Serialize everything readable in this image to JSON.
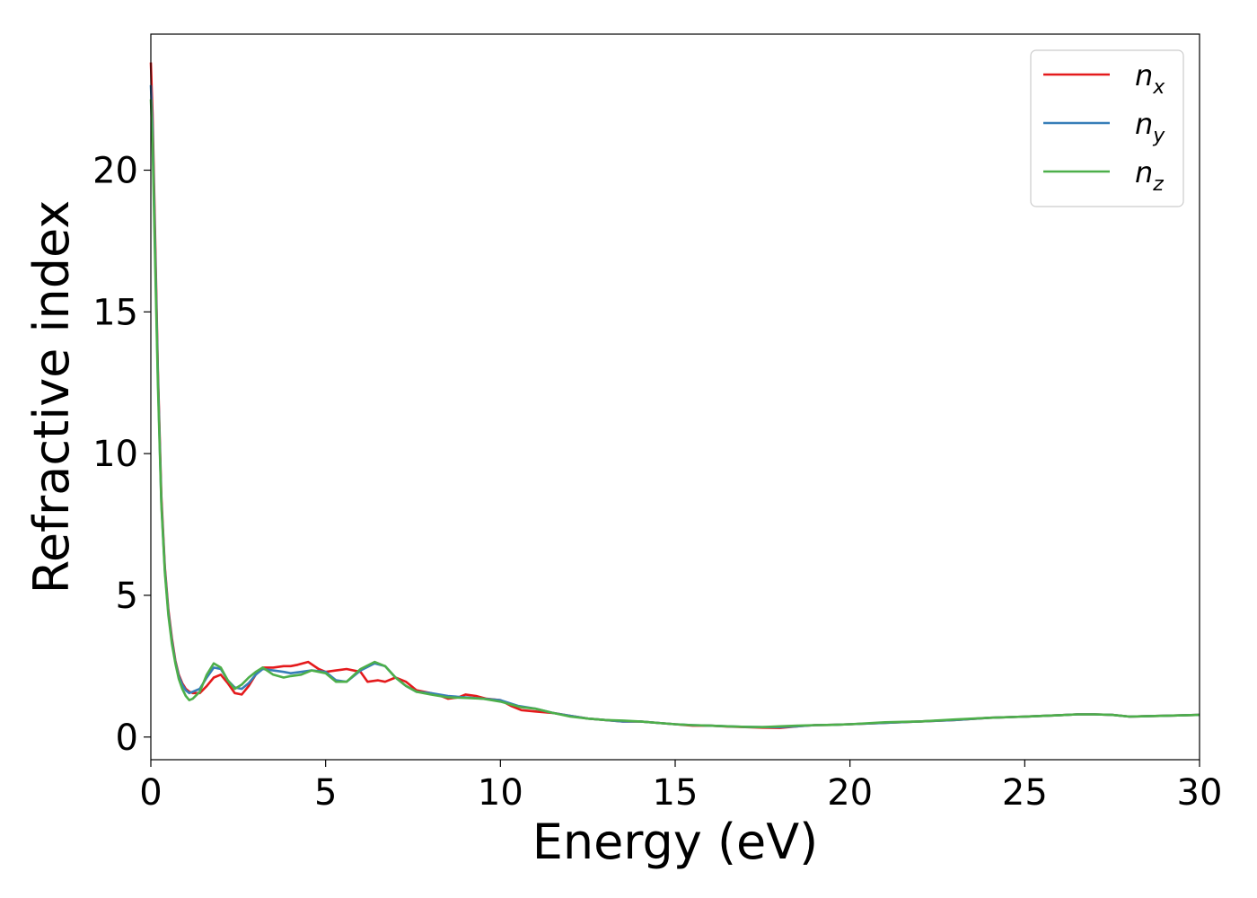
{
  "chart_data": {
    "type": "line",
    "title": "",
    "xlabel": "Energy (eV)",
    "ylabel": "Refractive index",
    "xlim": [
      0,
      30
    ],
    "ylim": [
      -0.8,
      24.8
    ],
    "xticks": [
      "0",
      "5",
      "10",
      "15",
      "20",
      "25",
      "30"
    ],
    "yticks": [
      "0",
      "5",
      "10",
      "15",
      "20"
    ],
    "grid": false,
    "legend": "top-right",
    "series": [
      {
        "name": "n_x",
        "label_base": "n",
        "label_sub": "x",
        "color": "#e41a1c",
        "points": [
          [
            0,
            23.8
          ],
          [
            0.05,
            22
          ],
          [
            0.1,
            19
          ],
          [
            0.2,
            13
          ],
          [
            0.3,
            8.5
          ],
          [
            0.4,
            6.0
          ],
          [
            0.5,
            4.5
          ],
          [
            0.6,
            3.5
          ],
          [
            0.7,
            2.7
          ],
          [
            0.8,
            2.2
          ],
          [
            0.9,
            1.9
          ],
          [
            1.0,
            1.7
          ],
          [
            1.1,
            1.6
          ],
          [
            1.2,
            1.55
          ],
          [
            1.4,
            1.55
          ],
          [
            1.6,
            1.8
          ],
          [
            1.8,
            2.1
          ],
          [
            2.0,
            2.2
          ],
          [
            2.2,
            1.9
          ],
          [
            2.4,
            1.55
          ],
          [
            2.6,
            1.5
          ],
          [
            2.8,
            1.8
          ],
          [
            3.0,
            2.2
          ],
          [
            3.2,
            2.45
          ],
          [
            3.5,
            2.45
          ],
          [
            3.8,
            2.5
          ],
          [
            4.0,
            2.5
          ],
          [
            4.2,
            2.55
          ],
          [
            4.5,
            2.65
          ],
          [
            4.8,
            2.4
          ],
          [
            5.0,
            2.3
          ],
          [
            5.3,
            2.35
          ],
          [
            5.6,
            2.4
          ],
          [
            6.0,
            2.3
          ],
          [
            6.2,
            1.95
          ],
          [
            6.5,
            2.0
          ],
          [
            6.7,
            1.95
          ],
          [
            7.0,
            2.1
          ],
          [
            7.3,
            1.95
          ],
          [
            7.6,
            1.65
          ],
          [
            8.0,
            1.55
          ],
          [
            8.3,
            1.45
          ],
          [
            8.5,
            1.35
          ],
          [
            8.8,
            1.4
          ],
          [
            9.0,
            1.5
          ],
          [
            9.3,
            1.45
          ],
          [
            9.6,
            1.35
          ],
          [
            10.0,
            1.3
          ],
          [
            10.3,
            1.1
          ],
          [
            10.6,
            0.95
          ],
          [
            11.0,
            0.9
          ],
          [
            11.5,
            0.85
          ],
          [
            12.0,
            0.75
          ],
          [
            12.5,
            0.65
          ],
          [
            13.0,
            0.6
          ],
          [
            13.5,
            0.55
          ],
          [
            14.0,
            0.55
          ],
          [
            14.5,
            0.5
          ],
          [
            15.0,
            0.45
          ],
          [
            15.5,
            0.4
          ],
          [
            16.0,
            0.4
          ],
          [
            16.5,
            0.37
          ],
          [
            17.0,
            0.35
          ],
          [
            17.5,
            0.33
          ],
          [
            18.0,
            0.32
          ],
          [
            18.5,
            0.38
          ],
          [
            19.0,
            0.42
          ],
          [
            19.5,
            0.43
          ],
          [
            20.0,
            0.45
          ],
          [
            21.0,
            0.5
          ],
          [
            22.0,
            0.55
          ],
          [
            23.0,
            0.6
          ],
          [
            24.0,
            0.68
          ],
          [
            25.0,
            0.72
          ],
          [
            26.0,
            0.77
          ],
          [
            26.5,
            0.8
          ],
          [
            27.0,
            0.8
          ],
          [
            27.5,
            0.78
          ],
          [
            28.0,
            0.72
          ],
          [
            29.0,
            0.75
          ],
          [
            30.0,
            0.78
          ]
        ]
      },
      {
        "name": "n_y",
        "label_base": "n",
        "label_sub": "y",
        "color": "#377eb8",
        "points": [
          [
            0,
            23.0
          ],
          [
            0.05,
            21.5
          ],
          [
            0.1,
            18.5
          ],
          [
            0.2,
            12.8
          ],
          [
            0.3,
            8.3
          ],
          [
            0.4,
            5.9
          ],
          [
            0.5,
            4.4
          ],
          [
            0.6,
            3.4
          ],
          [
            0.7,
            2.65
          ],
          [
            0.8,
            2.15
          ],
          [
            0.9,
            1.85
          ],
          [
            1.0,
            1.65
          ],
          [
            1.1,
            1.55
          ],
          [
            1.2,
            1.6
          ],
          [
            1.4,
            1.7
          ],
          [
            1.6,
            2.1
          ],
          [
            1.8,
            2.45
          ],
          [
            2.0,
            2.4
          ],
          [
            2.2,
            2.0
          ],
          [
            2.4,
            1.75
          ],
          [
            2.6,
            1.7
          ],
          [
            2.8,
            1.9
          ],
          [
            3.0,
            2.2
          ],
          [
            3.2,
            2.4
          ],
          [
            3.5,
            2.35
          ],
          [
            3.8,
            2.3
          ],
          [
            4.0,
            2.25
          ],
          [
            4.3,
            2.3
          ],
          [
            4.6,
            2.35
          ],
          [
            5.0,
            2.3
          ],
          [
            5.3,
            2.0
          ],
          [
            5.6,
            1.95
          ],
          [
            6.0,
            2.35
          ],
          [
            6.4,
            2.6
          ],
          [
            6.7,
            2.5
          ],
          [
            7.0,
            2.1
          ],
          [
            7.3,
            1.8
          ],
          [
            7.6,
            1.6
          ],
          [
            8.0,
            1.55
          ],
          [
            8.5,
            1.45
          ],
          [
            9.0,
            1.4
          ],
          [
            9.5,
            1.35
          ],
          [
            10.0,
            1.3
          ],
          [
            10.5,
            1.1
          ],
          [
            11.0,
            1.0
          ],
          [
            11.5,
            0.85
          ],
          [
            12.0,
            0.75
          ],
          [
            12.5,
            0.65
          ],
          [
            13.0,
            0.6
          ],
          [
            13.5,
            0.55
          ],
          [
            14.0,
            0.55
          ],
          [
            14.5,
            0.5
          ],
          [
            15.0,
            0.45
          ],
          [
            15.5,
            0.42
          ],
          [
            16.0,
            0.4
          ],
          [
            16.5,
            0.38
          ],
          [
            17.0,
            0.36
          ],
          [
            17.5,
            0.35
          ],
          [
            18.0,
            0.35
          ],
          [
            18.5,
            0.38
          ],
          [
            19.0,
            0.42
          ],
          [
            19.5,
            0.43
          ],
          [
            20.0,
            0.45
          ],
          [
            21.0,
            0.5
          ],
          [
            22.0,
            0.55
          ],
          [
            23.0,
            0.6
          ],
          [
            24.0,
            0.68
          ],
          [
            25.0,
            0.72
          ],
          [
            26.0,
            0.77
          ],
          [
            26.5,
            0.8
          ],
          [
            27.0,
            0.8
          ],
          [
            27.5,
            0.78
          ],
          [
            28.0,
            0.72
          ],
          [
            29.0,
            0.75
          ],
          [
            30.0,
            0.78
          ]
        ]
      },
      {
        "name": "n_z",
        "label_base": "n",
        "label_sub": "z",
        "color": "#4daf4a",
        "points": [
          [
            0,
            22.5
          ],
          [
            0.05,
            21
          ],
          [
            0.1,
            18
          ],
          [
            0.2,
            12.5
          ],
          [
            0.3,
            8.2
          ],
          [
            0.4,
            5.8
          ],
          [
            0.5,
            4.3
          ],
          [
            0.6,
            3.3
          ],
          [
            0.7,
            2.6
          ],
          [
            0.8,
            2.05
          ],
          [
            0.9,
            1.7
          ],
          [
            1.0,
            1.45
          ],
          [
            1.1,
            1.3
          ],
          [
            1.2,
            1.35
          ],
          [
            1.4,
            1.6
          ],
          [
            1.6,
            2.2
          ],
          [
            1.8,
            2.6
          ],
          [
            2.0,
            2.45
          ],
          [
            2.2,
            2.0
          ],
          [
            2.4,
            1.7
          ],
          [
            2.6,
            1.85
          ],
          [
            2.8,
            2.1
          ],
          [
            3.0,
            2.3
          ],
          [
            3.2,
            2.45
          ],
          [
            3.5,
            2.2
          ],
          [
            3.8,
            2.1
          ],
          [
            4.0,
            2.15
          ],
          [
            4.3,
            2.2
          ],
          [
            4.6,
            2.35
          ],
          [
            5.0,
            2.25
          ],
          [
            5.3,
            1.95
          ],
          [
            5.6,
            1.95
          ],
          [
            6.0,
            2.4
          ],
          [
            6.4,
            2.65
          ],
          [
            6.7,
            2.5
          ],
          [
            7.0,
            2.1
          ],
          [
            7.3,
            1.8
          ],
          [
            7.6,
            1.6
          ],
          [
            8.0,
            1.5
          ],
          [
            8.5,
            1.4
          ],
          [
            9.0,
            1.38
          ],
          [
            9.5,
            1.35
          ],
          [
            10.0,
            1.25
          ],
          [
            10.3,
            1.15
          ],
          [
            10.6,
            1.05
          ],
          [
            11.0,
            1.0
          ],
          [
            11.5,
            0.85
          ],
          [
            12.0,
            0.72
          ],
          [
            12.5,
            0.65
          ],
          [
            13.0,
            0.6
          ],
          [
            13.5,
            0.58
          ],
          [
            14.0,
            0.55
          ],
          [
            14.5,
            0.5
          ],
          [
            15.0,
            0.45
          ],
          [
            15.5,
            0.42
          ],
          [
            16.0,
            0.4
          ],
          [
            16.5,
            0.38
          ],
          [
            17.0,
            0.36
          ],
          [
            17.5,
            0.35
          ],
          [
            18.0,
            0.38
          ],
          [
            18.5,
            0.4
          ],
          [
            19.0,
            0.42
          ],
          [
            19.5,
            0.43
          ],
          [
            20.0,
            0.45
          ],
          [
            21.0,
            0.52
          ],
          [
            22.0,
            0.55
          ],
          [
            23.0,
            0.62
          ],
          [
            24.0,
            0.68
          ],
          [
            25.0,
            0.72
          ],
          [
            26.0,
            0.77
          ],
          [
            26.5,
            0.8
          ],
          [
            27.0,
            0.8
          ],
          [
            27.5,
            0.78
          ],
          [
            28.0,
            0.72
          ],
          [
            29.0,
            0.75
          ],
          [
            30.0,
            0.78
          ]
        ]
      }
    ]
  }
}
